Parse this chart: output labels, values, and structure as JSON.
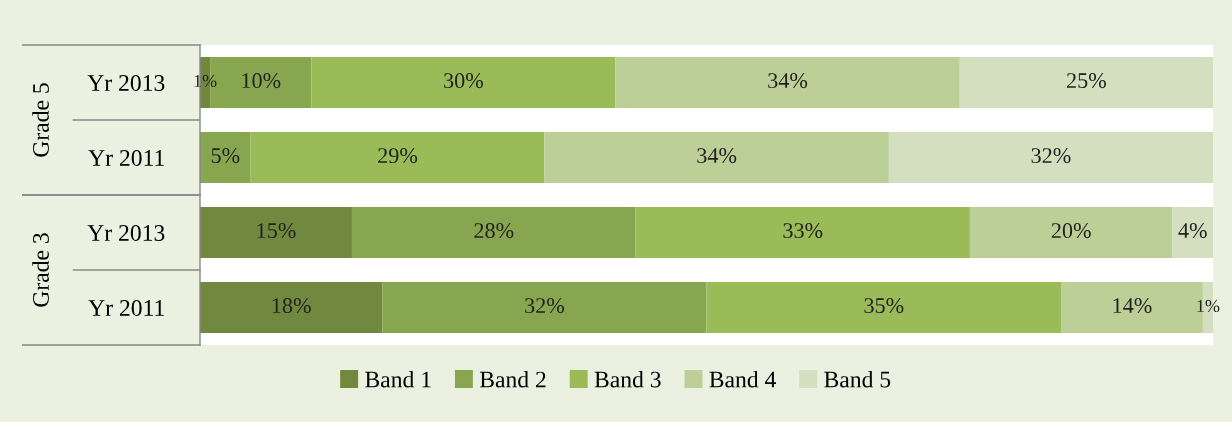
{
  "chart_data": {
    "type": "bar",
    "orientation": "horizontal",
    "stacked": true,
    "categories": [
      "Yr 2013",
      "Yr 2011",
      "Yr 2013",
      "Yr 2011"
    ],
    "annotations": [
      "Grade 5",
      "Grade 3"
    ],
    "series": [
      {
        "name": "Band 1",
        "color": "#71893f",
        "values": [
          1,
          null,
          15,
          18
        ],
        "value_labels": [
          "1%",
          null,
          "15%",
          "18%"
        ]
      },
      {
        "name": "Band 2",
        "color": "#88a64f",
        "values": [
          10,
          5,
          28,
          32
        ],
        "value_labels": [
          "10%",
          "5%",
          "28%",
          "32%"
        ]
      },
      {
        "name": "Band 3",
        "color": "#9bbb59",
        "values": [
          30,
          29,
          33,
          35
        ],
        "value_labels": [
          "30%",
          "29%",
          "33%",
          "35%"
        ]
      },
      {
        "name": "Band 4",
        "color": "#bccf96",
        "values": [
          34,
          34,
          20,
          14
        ],
        "value_labels": [
          "34%",
          "34%",
          "20%",
          "14%"
        ]
      },
      {
        "name": "Band 5",
        "color": "#d3dfbe",
        "values": [
          25,
          32,
          4,
          1
        ],
        "value_labels": [
          "25%",
          "32%",
          "4%",
          "1%"
        ]
      }
    ],
    "legend": "bottom",
    "tick_labels": "y",
    "grid": false
  }
}
